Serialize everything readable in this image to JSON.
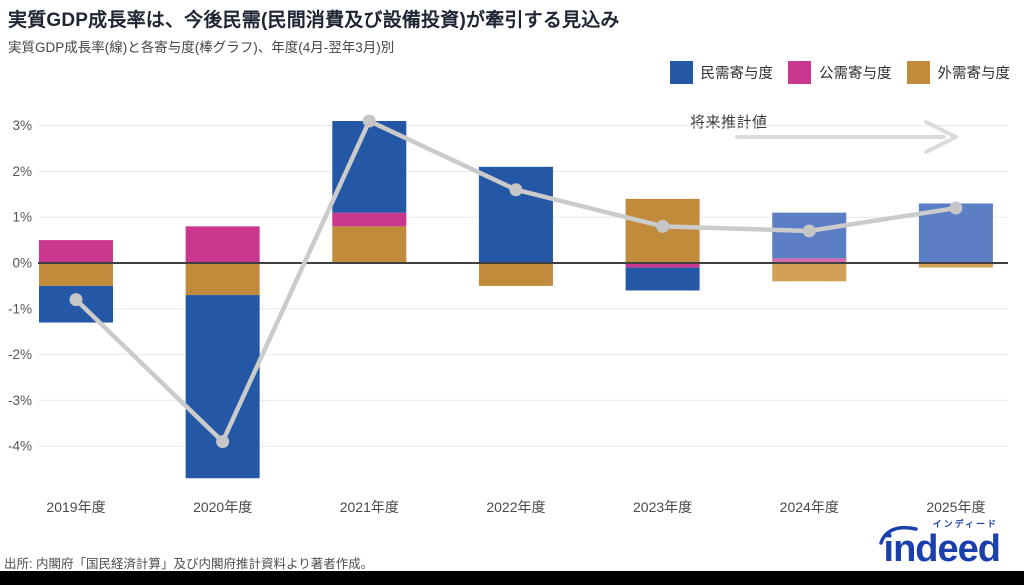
{
  "header": {
    "title": "実質GDP成長率は、今後民需(民間消費及び設備投資)が牽引する見込み",
    "subtitle": "実質GDP成長率(線)と各寄与度(棒グラフ)、年度(4月-翌年3月)別"
  },
  "legend": {
    "items": [
      {
        "label": "民需寄与度",
        "color": "#2457A6"
      },
      {
        "label": "公需寄与度",
        "color": "#C9388E"
      },
      {
        "label": "外需寄与度",
        "color": "#C28A3B"
      }
    ]
  },
  "annotation": {
    "label": "将来推計値"
  },
  "source": "出所: 内閣府「国民経済計算」及び内閣府推計資料より著者作成。",
  "logo": {
    "text": "indeed",
    "ruby": "インディード",
    "color": "#1c3fae"
  },
  "chart_data": {
    "type": "bar+line",
    "title": "実質GDP成長率は、今後民需(民間消費及び設備投資)が牽引する見込み",
    "categories": [
      "2019年度",
      "2020年度",
      "2021年度",
      "2022年度",
      "2023年度",
      "2024年度",
      "2025年度"
    ],
    "series": [
      {
        "name": "民需寄与度",
        "type": "bar",
        "color": "#2457A6",
        "color_forecast": "#5C7EC4",
        "values": [
          -0.8,
          -4.0,
          2.0,
          2.1,
          -0.5,
          1.0,
          1.3
        ]
      },
      {
        "name": "公需寄与度",
        "type": "bar",
        "color": "#C9388E",
        "color_forecast": "#D66BAD",
        "values": [
          0.5,
          0.8,
          0.3,
          0.0,
          -0.1,
          0.1,
          0.0
        ]
      },
      {
        "name": "外需寄与度",
        "type": "bar",
        "color": "#C28A3B",
        "color_forecast": "#D2A057",
        "values": [
          -0.5,
          -0.7,
          0.8,
          -0.5,
          1.4,
          -0.4,
          -0.1
        ]
      }
    ],
    "line": {
      "name": "実質GDP成長率",
      "values": [
        -0.8,
        -3.9,
        3.1,
        1.6,
        0.8,
        0.7,
        1.2
      ],
      "color": "#CBCBCB",
      "marker_color": "#C6C6C6"
    },
    "stack_order": [
      "外需寄与度",
      "公需寄与度",
      "民需寄与度"
    ],
    "forecast_start_index": 5,
    "unit": "%",
    "yticks": [
      3,
      2,
      1,
      0,
      -1,
      -2,
      -3,
      -4
    ],
    "ylim": [
      -5.0,
      3.5
    ],
    "grid": true,
    "legend_position": "top-right",
    "annotation": "将来推計値",
    "zero_line_color": "#3f3f3f",
    "grid_color": "#E9E9E9"
  }
}
